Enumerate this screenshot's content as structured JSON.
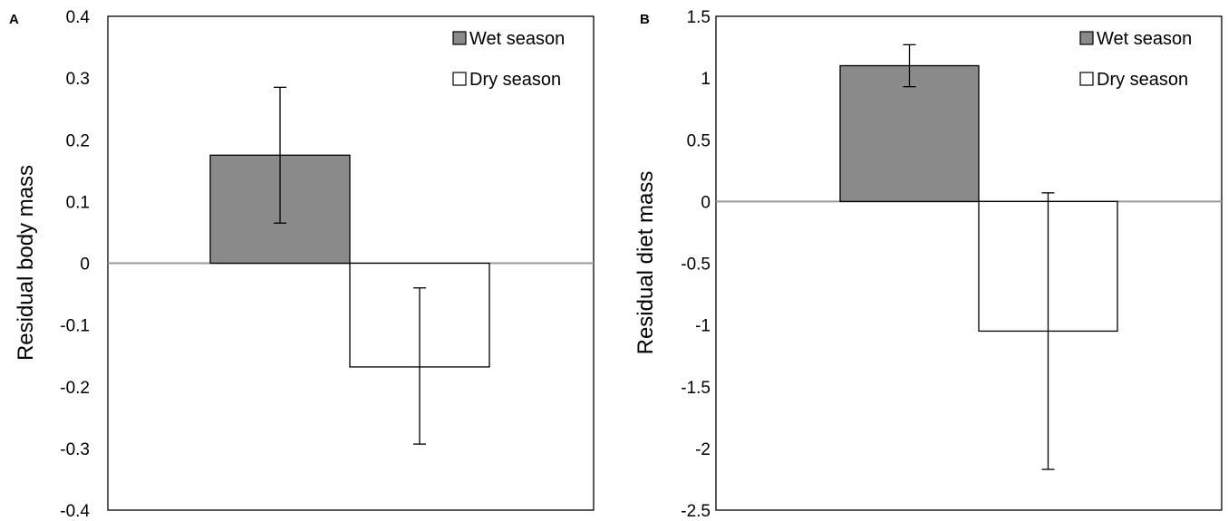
{
  "chart_data": [
    {
      "panel_label": "A",
      "type": "bar",
      "ylabel": "Residual body mass",
      "xlabel": "",
      "ylim": [
        -0.4,
        0.4
      ],
      "yticks": [
        -0.4,
        -0.3,
        -0.2,
        -0.1,
        0,
        0.1,
        0.2,
        0.3,
        0.4
      ],
      "ytick_labels": [
        "-0.4",
        "-0.3",
        "-0.2",
        "-0.1",
        "0",
        "0.1",
        "0.2",
        "0.3",
        "0.4"
      ],
      "categories": [
        "Wet season",
        "Dry season"
      ],
      "series": [
        {
          "name": "Wet season",
          "value": 0.175,
          "error_low": 0.065,
          "error_high": 0.285,
          "color": "#8a8a8a"
        },
        {
          "name": "Dry season",
          "value": -0.168,
          "error_low": -0.293,
          "error_high": -0.04,
          "color": "#ffffff"
        }
      ],
      "grid": false,
      "legend_position": "top-right"
    },
    {
      "panel_label": "B",
      "type": "bar",
      "ylabel": "Residual diet mass",
      "xlabel": "",
      "ylim": [
        -2.5,
        1.5
      ],
      "yticks": [
        -2.5,
        -2,
        -1.5,
        -1,
        -0.5,
        0,
        0.5,
        1,
        1.5
      ],
      "ytick_labels": [
        "-2.5",
        "-2",
        "-1.5",
        "-1",
        "-0.5",
        "0",
        "0.5",
        "1",
        "1.5"
      ],
      "categories": [
        "Wet season",
        "Dry season"
      ],
      "series": [
        {
          "name": "Wet season",
          "value": 1.1,
          "error_low": 0.93,
          "error_high": 1.27,
          "color": "#8a8a8a"
        },
        {
          "name": "Dry season",
          "value": -1.05,
          "error_low": -2.17,
          "error_high": 0.07,
          "color": "#ffffff"
        }
      ],
      "grid": false,
      "legend_position": "top-right"
    }
  ]
}
